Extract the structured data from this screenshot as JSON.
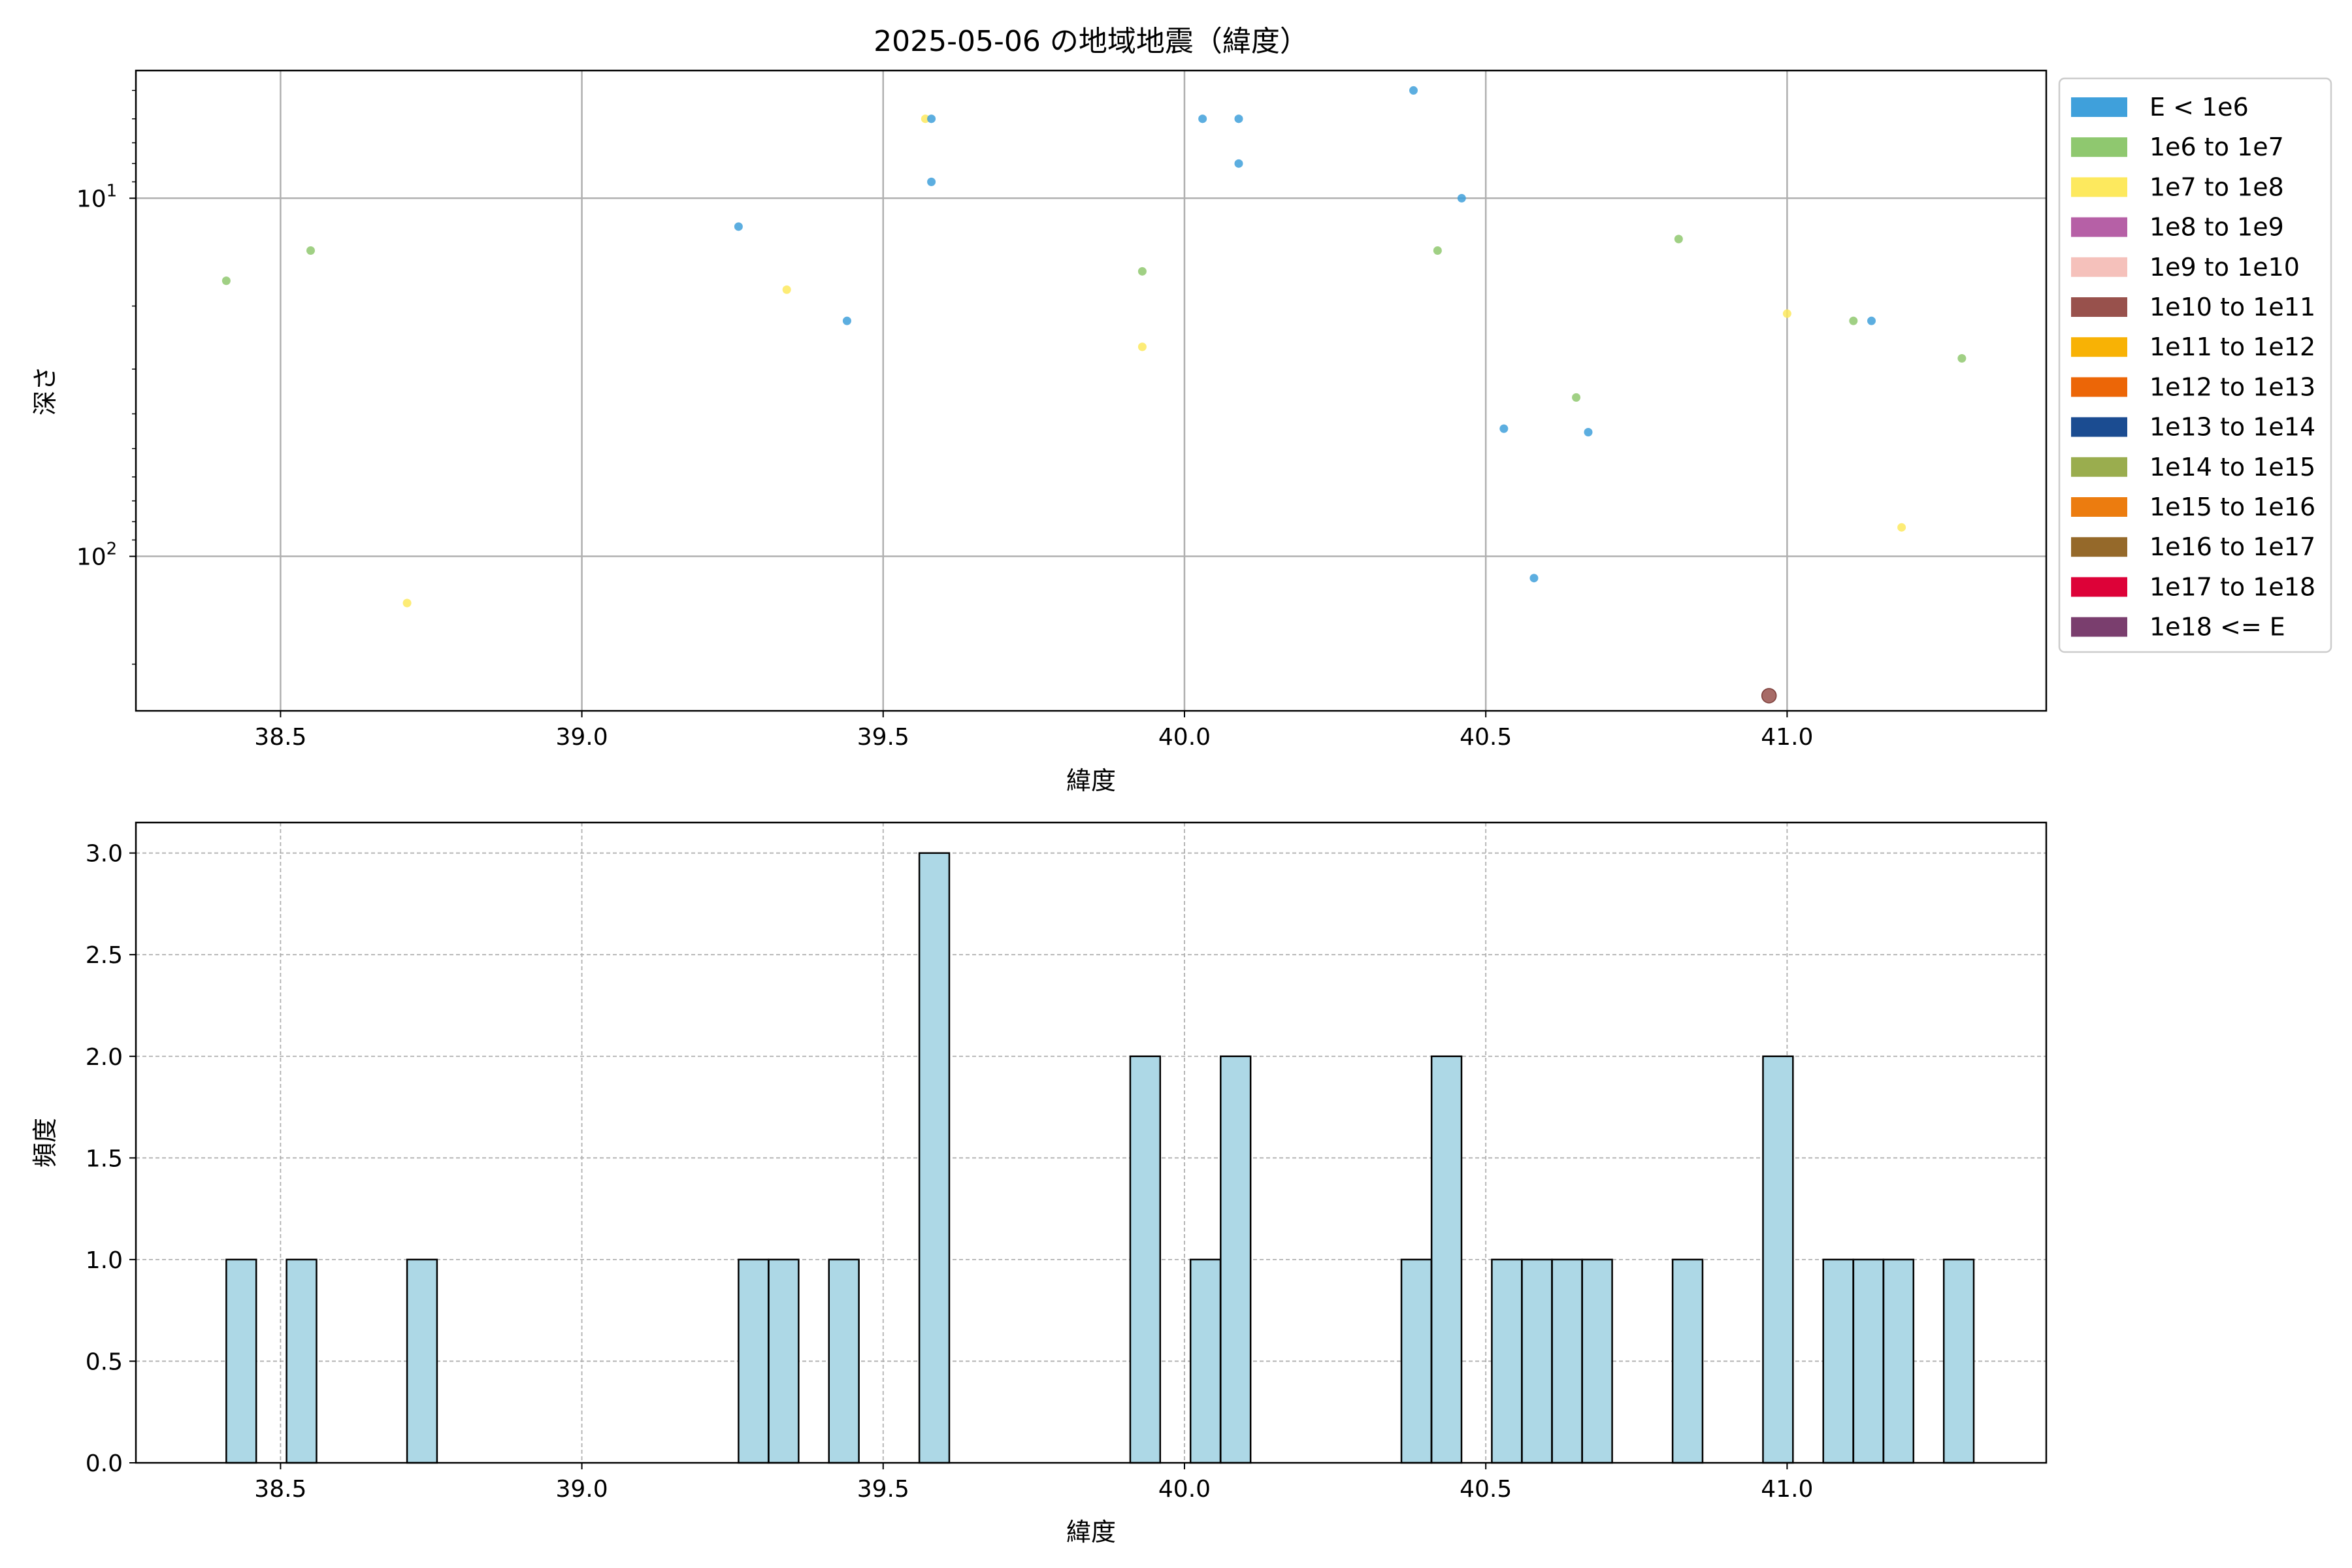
{
  "chart_data": [
    {
      "type": "scatter",
      "title": "2025-05-06 の地域地震（緯度）",
      "xlabel": "緯度",
      "ylabel": "深さ",
      "xlim": [
        38.26,
        41.43
      ],
      "xticks": [
        38.5,
        39.0,
        39.5,
        40.0,
        40.5,
        41.0
      ],
      "yscale": "log",
      "yaxis_inverted": true,
      "ylim": [
        4.4,
        270
      ],
      "yticks": [
        {
          "value": 10,
          "base": "10",
          "exp": "1"
        },
        {
          "value": 100,
          "base": "10",
          "exp": "2"
        }
      ],
      "grid": true,
      "legend_position": "outside right",
      "legend": [
        {
          "label": "E < 1e6",
          "color": "#3fa0db"
        },
        {
          "label": "1e6 to 1e7",
          "color": "#8fc86f"
        },
        {
          "label": "1e7 to 1e8",
          "color": "#fde95e"
        },
        {
          "label": "1e8 to 1e9",
          "color": "#b660a6"
        },
        {
          "label": "1e9 to 1e10",
          "color": "#f5c1bb"
        },
        {
          "label": "1e10 to 1e11",
          "color": "#98514c"
        },
        {
          "label": "1e11 to 1e12",
          "color": "#f8b205"
        },
        {
          "label": "1e12 to 1e13",
          "color": "#ec6607"
        },
        {
          "label": "1e13 to 1e14",
          "color": "#1b4c91"
        },
        {
          "label": "1e14 to 1e15",
          "color": "#9aad4e"
        },
        {
          "label": "1e15 to 1e16",
          "color": "#ec7c0f"
        },
        {
          "label": "1e16 to 1e17",
          "color": "#95692a"
        },
        {
          "label": "1e17 to 1e18",
          "color": "#dd0238"
        },
        {
          "label": "1e18 <= E",
          "color": "#7a3e6e"
        }
      ],
      "points": [
        {
          "x": 38.41,
          "y": 17,
          "cls": 1
        },
        {
          "x": 38.55,
          "y": 14,
          "cls": 1
        },
        {
          "x": 38.71,
          "y": 135,
          "cls": 2
        },
        {
          "x": 39.26,
          "y": 12,
          "cls": 0
        },
        {
          "x": 39.34,
          "y": 18,
          "cls": 2
        },
        {
          "x": 39.44,
          "y": 22,
          "cls": 0
        },
        {
          "x": 39.57,
          "y": 6,
          "cls": 2
        },
        {
          "x": 39.58,
          "y": 6,
          "cls": 0
        },
        {
          "x": 39.58,
          "y": 9,
          "cls": 0
        },
        {
          "x": 39.93,
          "y": 16,
          "cls": 1
        },
        {
          "x": 39.93,
          "y": 26,
          "cls": 2
        },
        {
          "x": 40.03,
          "y": 6,
          "cls": 0
        },
        {
          "x": 40.09,
          "y": 6,
          "cls": 0
        },
        {
          "x": 40.09,
          "y": 8,
          "cls": 0
        },
        {
          "x": 40.38,
          "y": 5,
          "cls": 0
        },
        {
          "x": 40.42,
          "y": 14,
          "cls": 1
        },
        {
          "x": 40.46,
          "y": 10,
          "cls": 0
        },
        {
          "x": 40.53,
          "y": 44,
          "cls": 0
        },
        {
          "x": 40.58,
          "y": 115,
          "cls": 0
        },
        {
          "x": 40.65,
          "y": 36,
          "cls": 1
        },
        {
          "x": 40.67,
          "y": 45,
          "cls": 0
        },
        {
          "x": 40.82,
          "y": 13,
          "cls": 1
        },
        {
          "x": 40.97,
          "y": 245,
          "cls": 5,
          "large": true
        },
        {
          "x": 41.0,
          "y": 21,
          "cls": 2
        },
        {
          "x": 41.11,
          "y": 22,
          "cls": 1
        },
        {
          "x": 41.14,
          "y": 22,
          "cls": 0
        },
        {
          "x": 41.19,
          "y": 83,
          "cls": 2
        },
        {
          "x": 41.29,
          "y": 28,
          "cls": 1
        }
      ]
    },
    {
      "type": "bar",
      "subtype": "histogram",
      "xlabel": "緯度",
      "ylabel": "頻度",
      "xlim": [
        38.26,
        41.43
      ],
      "ylim": [
        0,
        3.15
      ],
      "xticks": [
        38.5,
        39.0,
        39.5,
        40.0,
        40.5,
        41.0
      ],
      "yticks": [
        0.0,
        0.5,
        1.0,
        1.5,
        2.0,
        2.5,
        3.0
      ],
      "grid": "dashed",
      "bar_color": "#add8e6",
      "edge_color": "#000000",
      "bin_width": 0.0497,
      "bins": [
        {
          "start": 38.41,
          "count": 1
        },
        {
          "start": 38.51,
          "count": 1
        },
        {
          "start": 38.71,
          "count": 1
        },
        {
          "start": 39.26,
          "count": 1
        },
        {
          "start": 39.31,
          "count": 1
        },
        {
          "start": 39.41,
          "count": 1
        },
        {
          "start": 39.56,
          "count": 3
        },
        {
          "start": 39.91,
          "count": 2
        },
        {
          "start": 40.01,
          "count": 1
        },
        {
          "start": 40.06,
          "count": 2
        },
        {
          "start": 40.36,
          "count": 1
        },
        {
          "start": 40.41,
          "count": 2
        },
        {
          "start": 40.51,
          "count": 1
        },
        {
          "start": 40.56,
          "count": 1
        },
        {
          "start": 40.61,
          "count": 1
        },
        {
          "start": 40.66,
          "count": 1
        },
        {
          "start": 40.81,
          "count": 1
        },
        {
          "start": 40.96,
          "count": 2
        },
        {
          "start": 41.06,
          "count": 1
        },
        {
          "start": 41.11,
          "count": 1
        },
        {
          "start": 41.16,
          "count": 1
        },
        {
          "start": 41.26,
          "count": 1
        }
      ]
    }
  ]
}
